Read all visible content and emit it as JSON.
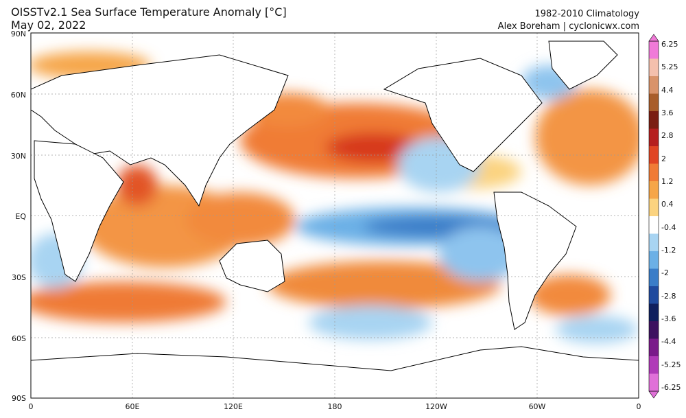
{
  "header": {
    "title_line1": "OISSTv2.1 Sea Surface Temperature Anomaly [°C]",
    "title_line2": "May 02, 2022",
    "credit_line1": "1982-2010 Climatology",
    "credit_line2": "Alex Boreham | cyclonicwx.com"
  },
  "axes": {
    "lat_labels": [
      "90N",
      "60N",
      "30N",
      "EQ",
      "30S",
      "60S",
      "90S"
    ],
    "lon_labels": [
      "0",
      "60E",
      "120E",
      "180",
      "120W",
      "60W",
      "0"
    ]
  },
  "colorbar": {
    "labels": [
      "6.25",
      "5.25",
      "4.4",
      "3.6",
      "2.8",
      "2",
      "1.2",
      "0.4",
      "-0.4",
      "-1.2",
      "-2",
      "-2.8",
      "-3.6",
      "-4.4",
      "-5.25",
      "-6.25"
    ],
    "colors": [
      "#f07ad8",
      "#f4c0ad",
      "#d9936a",
      "#a85d2a",
      "#7a1e12",
      "#b51e1e",
      "#e04423",
      "#f07b35",
      "#f6a648",
      "#fbd37f",
      "#ffffff",
      "#a8d4f2",
      "#6cb0e6",
      "#3a7dc8",
      "#1f4a9e",
      "#0f1f5e",
      "#3d1260",
      "#7a1a8a",
      "#b03ab8",
      "#e070d8"
    ]
  }
}
